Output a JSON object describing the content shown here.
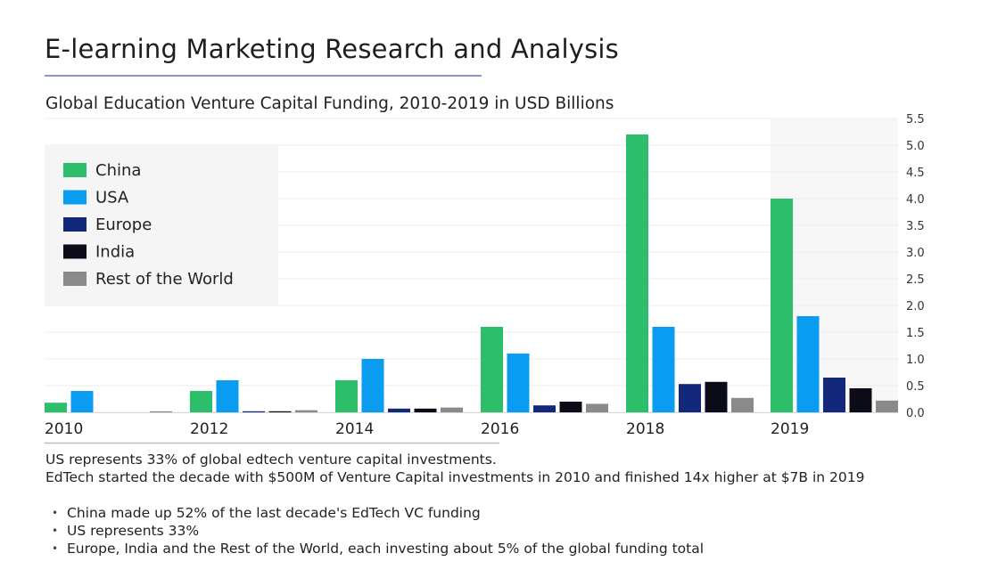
{
  "page": {
    "title": "E-learning Marketing Research and Analysis",
    "subtitle": "Global Education Venture Capital Funding, 2010-2019 in USD Billions",
    "notes": [
      "US represents 33% of global edtech venture capital investments.",
      "EdTech started the decade with $500M of Venture Capital investments in 2010 and finished 14x higher at $7B in 2019"
    ],
    "bullets": [
      "China made up 52% of the last decade's EdTech VC funding",
      "US represents 33%",
      "Europe, India and the Rest of the World, each investing about 5% of the global funding total"
    ]
  },
  "chart_data": {
    "type": "bar",
    "categories": [
      "2010",
      "2012",
      "2014",
      "2016",
      "2018",
      "2019"
    ],
    "series": [
      {
        "name": "China",
        "color": "#2dbe6c",
        "values": [
          0.18,
          0.4,
          0.6,
          1.6,
          5.2,
          4.0
        ]
      },
      {
        "name": "USA",
        "color": "#0a9cf0",
        "values": [
          0.4,
          0.6,
          1.0,
          1.1,
          1.6,
          1.8
        ]
      },
      {
        "name": "Europe",
        "color": "#13287a",
        "values": [
          0.0,
          0.02,
          0.07,
          0.13,
          0.53,
          0.65
        ]
      },
      {
        "name": "India",
        "color": "#0b0c18",
        "values": [
          0.0,
          0.02,
          0.07,
          0.2,
          0.57,
          0.45
        ]
      },
      {
        "name": "Rest of the World",
        "color": "#8a8a8a",
        "values": [
          0.02,
          0.04,
          0.09,
          0.16,
          0.27,
          0.22
        ]
      }
    ],
    "yticks": [
      "0.0",
      "0.5",
      "1.0",
      "1.5",
      "2.0",
      "2.5",
      "3.0",
      "3.5",
      "4.0",
      "4.5",
      "5.0",
      "5.5"
    ],
    "ylim": [
      0,
      5.5
    ],
    "y_axis_side": "right",
    "grid": true,
    "legend_position": "top-left",
    "highlighted_category": "2019"
  }
}
